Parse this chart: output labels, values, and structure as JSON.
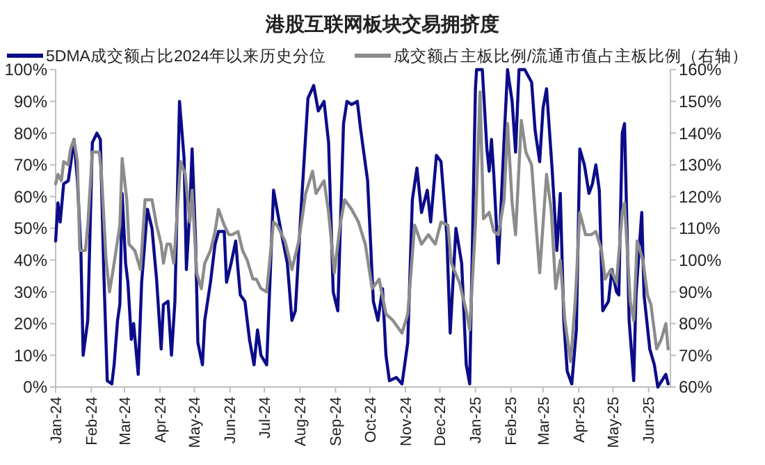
{
  "chart_data": {
    "type": "line",
    "title": "港股互联网板块交易拥挤度",
    "legend": "top",
    "xlim": [
      "2024-01-01",
      "2025-06-20"
    ],
    "xticks": [
      {
        "value": "2024-01-01",
        "label": "Jan-24"
      },
      {
        "value": "2024-02-01",
        "label": "Feb-24"
      },
      {
        "value": "2024-03-01",
        "label": "Mar-24"
      },
      {
        "value": "2024-04-01",
        "label": "Apr-24"
      },
      {
        "value": "2024-05-01",
        "label": "May-24"
      },
      {
        "value": "2024-06-01",
        "label": "Jun-24"
      },
      {
        "value": "2024-07-01",
        "label": "Jul-24"
      },
      {
        "value": "2024-08-01",
        "label": "Aug-24"
      },
      {
        "value": "2024-09-01",
        "label": "Sep-24"
      },
      {
        "value": "2024-10-01",
        "label": "Oct-24"
      },
      {
        "value": "2024-11-01",
        "label": "Nov-24"
      },
      {
        "value": "2024-12-01",
        "label": "Dec-24"
      },
      {
        "value": "2025-01-01",
        "label": "Jan-25"
      },
      {
        "value": "2025-02-01",
        "label": "Feb-25"
      },
      {
        "value": "2025-03-01",
        "label": "Mar-25"
      },
      {
        "value": "2025-04-01",
        "label": "Apr-25"
      },
      {
        "value": "2025-05-01",
        "label": "May-25"
      },
      {
        "value": "2025-06-01",
        "label": "Jun-25"
      }
    ],
    "ylim": [
      0,
      100
    ],
    "yticks": [
      {
        "value": 0,
        "label": "0%"
      },
      {
        "value": 10,
        "label": "10%"
      },
      {
        "value": 20,
        "label": "20%"
      },
      {
        "value": 30,
        "label": "30%"
      },
      {
        "value": 40,
        "label": "40%"
      },
      {
        "value": 50,
        "label": "50%"
      },
      {
        "value": 60,
        "label": "60%"
      },
      {
        "value": 70,
        "label": "70%"
      },
      {
        "value": 80,
        "label": "80%"
      },
      {
        "value": 90,
        "label": "90%"
      },
      {
        "value": 100,
        "label": "100%"
      }
    ],
    "y2lim": [
      60,
      160
    ],
    "y2ticks": [
      {
        "value": 60,
        "label": "60%"
      },
      {
        "value": 70,
        "label": "70%"
      },
      {
        "value": 80,
        "label": "80%"
      },
      {
        "value": 90,
        "label": "90%"
      },
      {
        "value": 100,
        "label": "100%"
      },
      {
        "value": 110,
        "label": "110%"
      },
      {
        "value": 120,
        "label": "120%"
      },
      {
        "value": 130,
        "label": "130%"
      },
      {
        "value": 140,
        "label": "140%"
      },
      {
        "value": 150,
        "label": "150%"
      },
      {
        "value": 160,
        "label": "160%"
      }
    ],
    "series": [
      {
        "name": "5DMA成交额占比2024年以来历史分位",
        "color": "#0c0c8a",
        "x": [
          "2024-01-01",
          "2024-01-03",
          "2024-01-05",
          "2024-01-08",
          "2024-01-12",
          "2024-01-14",
          "2024-01-17",
          "2024-01-20",
          "2024-01-23",
          "2024-01-25",
          "2024-01-29",
          "2024-02-02",
          "2024-02-06",
          "2024-02-09",
          "2024-02-12",
          "2024-02-15",
          "2024-02-19",
          "2024-02-21",
          "2024-02-24",
          "2024-02-26",
          "2024-02-28",
          "2024-03-02",
          "2024-03-04",
          "2024-03-07",
          "2024-03-09",
          "2024-03-13",
          "2024-03-16",
          "2024-03-21",
          "2024-03-25",
          "2024-03-29",
          "2024-04-02",
          "2024-04-04",
          "2024-04-08",
          "2024-04-11",
          "2024-04-14",
          "2024-04-18",
          "2024-04-22",
          "2024-04-24",
          "2024-04-27",
          "2024-04-29",
          "2024-05-02",
          "2024-05-04",
          "2024-05-08",
          "2024-05-10",
          "2024-05-15",
          "2024-05-19",
          "2024-05-22",
          "2024-05-27",
          "2024-05-29",
          "2024-06-02",
          "2024-06-06",
          "2024-06-08",
          "2024-06-10",
          "2024-06-14",
          "2024-06-18",
          "2024-06-22",
          "2024-06-25",
          "2024-06-28",
          "2024-07-03",
          "2024-07-09",
          "2024-07-15",
          "2024-07-21",
          "2024-07-25",
          "2024-07-28",
          "2024-08-02",
          "2024-08-08",
          "2024-08-13",
          "2024-08-17",
          "2024-08-22",
          "2024-08-26",
          "2024-08-30",
          "2024-09-03",
          "2024-09-08",
          "2024-09-11",
          "2024-09-15",
          "2024-09-20",
          "2024-09-23",
          "2024-09-29",
          "2024-10-04",
          "2024-10-08",
          "2024-10-12",
          "2024-10-15",
          "2024-10-18",
          "2024-10-24",
          "2024-10-29",
          "2024-11-03",
          "2024-11-07",
          "2024-11-11",
          "2024-11-15",
          "2024-11-20",
          "2024-11-23",
          "2024-11-28",
          "2024-12-02",
          "2024-12-07",
          "2024-12-10",
          "2024-12-15",
          "2024-12-20",
          "2024-12-24",
          "2024-12-27",
          "2025-01-01",
          "2025-01-02",
          "2025-01-07",
          "2025-01-11",
          "2025-01-13",
          "2025-01-15",
          "2025-01-17",
          "2025-01-21",
          "2025-01-26",
          "2025-01-29",
          "2025-02-02",
          "2025-02-05",
          "2025-02-08",
          "2025-02-13",
          "2025-02-19",
          "2025-02-22",
          "2025-02-26",
          "2025-03-01",
          "2025-03-04",
          "2025-03-09",
          "2025-03-13",
          "2025-03-16",
          "2025-03-19",
          "2025-03-22",
          "2025-03-26",
          "2025-03-30",
          "2025-04-02",
          "2025-04-06",
          "2025-04-10",
          "2025-04-13",
          "2025-04-16",
          "2025-04-19",
          "2025-04-22",
          "2025-04-27",
          "2025-04-30",
          "2025-05-04",
          "2025-05-06",
          "2025-05-09",
          "2025-05-11",
          "2025-05-15",
          "2025-05-19",
          "2025-05-21",
          "2025-05-26",
          "2025-05-28",
          "2025-06-02",
          "2025-06-06",
          "2025-06-09",
          "2025-06-16",
          "2025-06-18"
        ],
        "values": [
          46,
          58,
          52,
          64,
          65,
          70,
          78,
          65,
          43,
          10,
          21,
          77,
          80,
          78,
          36,
          2,
          1,
          7,
          21,
          26,
          61,
          39,
          33,
          15,
          20,
          4,
          33,
          56,
          50,
          34,
          12,
          26,
          27,
          10,
          27,
          90,
          72,
          37,
          56,
          75,
          46,
          14,
          7,
          21,
          33,
          45,
          49,
          49,
          33,
          39,
          46,
          37,
          29,
          27,
          15,
          7,
          18,
          10,
          7,
          62,
          50,
          39,
          21,
          24,
          56,
          91,
          95,
          87,
          90,
          77,
          30,
          24,
          83,
          90,
          89,
          90,
          81,
          65,
          27,
          21,
          31,
          10,
          2,
          3,
          1,
          14,
          59,
          69,
          55,
          62,
          52,
          73,
          71,
          48,
          17,
          50,
          39,
          7,
          1,
          94,
          100,
          100,
          75,
          68,
          78,
          67,
          39,
          78,
          100,
          90,
          74,
          100,
          100,
          96,
          81,
          71,
          88,
          94,
          68,
          43,
          61,
          21,
          5,
          1,
          18,
          75,
          70,
          61,
          64,
          70,
          62,
          24,
          27,
          37,
          30,
          29,
          80,
          83,
          21,
          2,
          29,
          55,
          29,
          12,
          7,
          0,
          4,
          1
        ]
      },
      {
        "name": "成交额占主板比例/流通市值占主板比例（右轴）",
        "color": "#8c8c8c",
        "axis": "y2",
        "x": [
          "2024-01-01",
          "2024-01-03",
          "2024-01-06",
          "2024-01-08",
          "2024-01-12",
          "2024-01-14",
          "2024-01-17",
          "2024-01-20",
          "2024-01-22",
          "2024-01-27",
          "2024-01-29",
          "2024-02-02",
          "2024-02-08",
          "2024-02-10",
          "2024-02-14",
          "2024-02-17",
          "2024-02-21",
          "2024-02-26",
          "2024-02-28",
          "2024-03-03",
          "2024-03-05",
          "2024-03-10",
          "2024-03-15",
          "2024-03-19",
          "2024-03-25",
          "2024-03-29",
          "2024-04-02",
          "2024-04-04",
          "2024-04-07",
          "2024-04-10",
          "2024-04-13",
          "2024-04-19",
          "2024-04-23",
          "2024-04-27",
          "2024-04-29",
          "2024-05-03",
          "2024-05-07",
          "2024-05-10",
          "2024-05-15",
          "2024-05-19",
          "2024-05-22",
          "2024-05-27",
          "2024-05-31",
          "2024-06-03",
          "2024-06-08",
          "2024-06-12",
          "2024-06-16",
          "2024-06-21",
          "2024-06-24",
          "2024-06-28",
          "2024-07-03",
          "2024-07-09",
          "2024-07-12",
          "2024-07-19",
          "2024-07-25",
          "2024-07-31",
          "2024-08-06",
          "2024-08-12",
          "2024-08-15",
          "2024-08-22",
          "2024-08-26",
          "2024-08-31",
          "2024-09-05",
          "2024-09-09",
          "2024-09-15",
          "2024-09-21",
          "2024-09-27",
          "2024-10-03",
          "2024-10-09",
          "2024-10-15",
          "2024-10-21",
          "2024-10-29",
          "2024-11-03",
          "2024-11-09",
          "2024-11-15",
          "2024-11-21",
          "2024-11-27",
          "2024-12-02",
          "2024-12-08",
          "2024-12-11",
          "2024-12-18",
          "2024-12-24",
          "2024-12-27",
          "2025-01-01",
          "2025-01-05",
          "2025-01-08",
          "2025-01-13",
          "2025-01-17",
          "2025-01-21",
          "2025-01-26",
          "2025-01-29",
          "2025-02-02",
          "2025-02-05",
          "2025-02-10",
          "2025-02-14",
          "2025-02-19",
          "2025-02-22",
          "2025-02-26",
          "2025-03-04",
          "2025-03-08",
          "2025-03-12",
          "2025-03-16",
          "2025-03-20",
          "2025-03-25",
          "2025-03-29",
          "2025-04-02",
          "2025-04-07",
          "2025-04-12",
          "2025-04-16",
          "2025-04-21",
          "2025-04-24",
          "2025-04-29",
          "2025-05-04",
          "2025-05-09",
          "2025-05-11",
          "2025-05-16",
          "2025-05-19",
          "2025-05-22",
          "2025-05-27",
          "2025-05-31",
          "2025-06-03",
          "2025-06-08",
          "2025-06-12",
          "2025-06-16",
          "2025-06-18"
        ],
        "values": [
          124,
          127,
          125,
          131,
          130,
          135,
          138,
          131,
          103,
          103,
          111,
          134,
          134,
          127,
          100,
          90,
          99,
          111,
          132,
          119,
          105,
          103,
          97,
          119,
          119,
          111,
          105,
          99,
          105,
          105,
          99,
          131,
          127,
          112,
          122,
          96,
          91,
          99,
          103,
          109,
          116,
          111,
          108,
          108,
          109,
          103,
          100,
          94,
          94,
          91,
          90,
          112,
          111,
          106,
          97,
          106,
          121,
          128,
          121,
          125,
          115,
          96,
          111,
          119,
          116,
          112,
          105,
          91,
          94,
          83,
          81,
          77,
          83,
          111,
          105,
          108,
          105,
          112,
          111,
          99,
          93,
          84,
          78,
          111,
          153,
          113,
          115,
          109,
          108,
          119,
          143,
          118,
          108,
          144,
          134,
          130,
          115,
          96,
          127,
          116,
          91,
          100,
          81,
          68,
          87,
          115,
          108,
          108,
          109,
          103,
          94,
          97,
          93,
          115,
          118,
          87,
          81,
          106,
          100,
          89,
          86,
          72,
          75,
          80,
          72
        ]
      }
    ]
  }
}
